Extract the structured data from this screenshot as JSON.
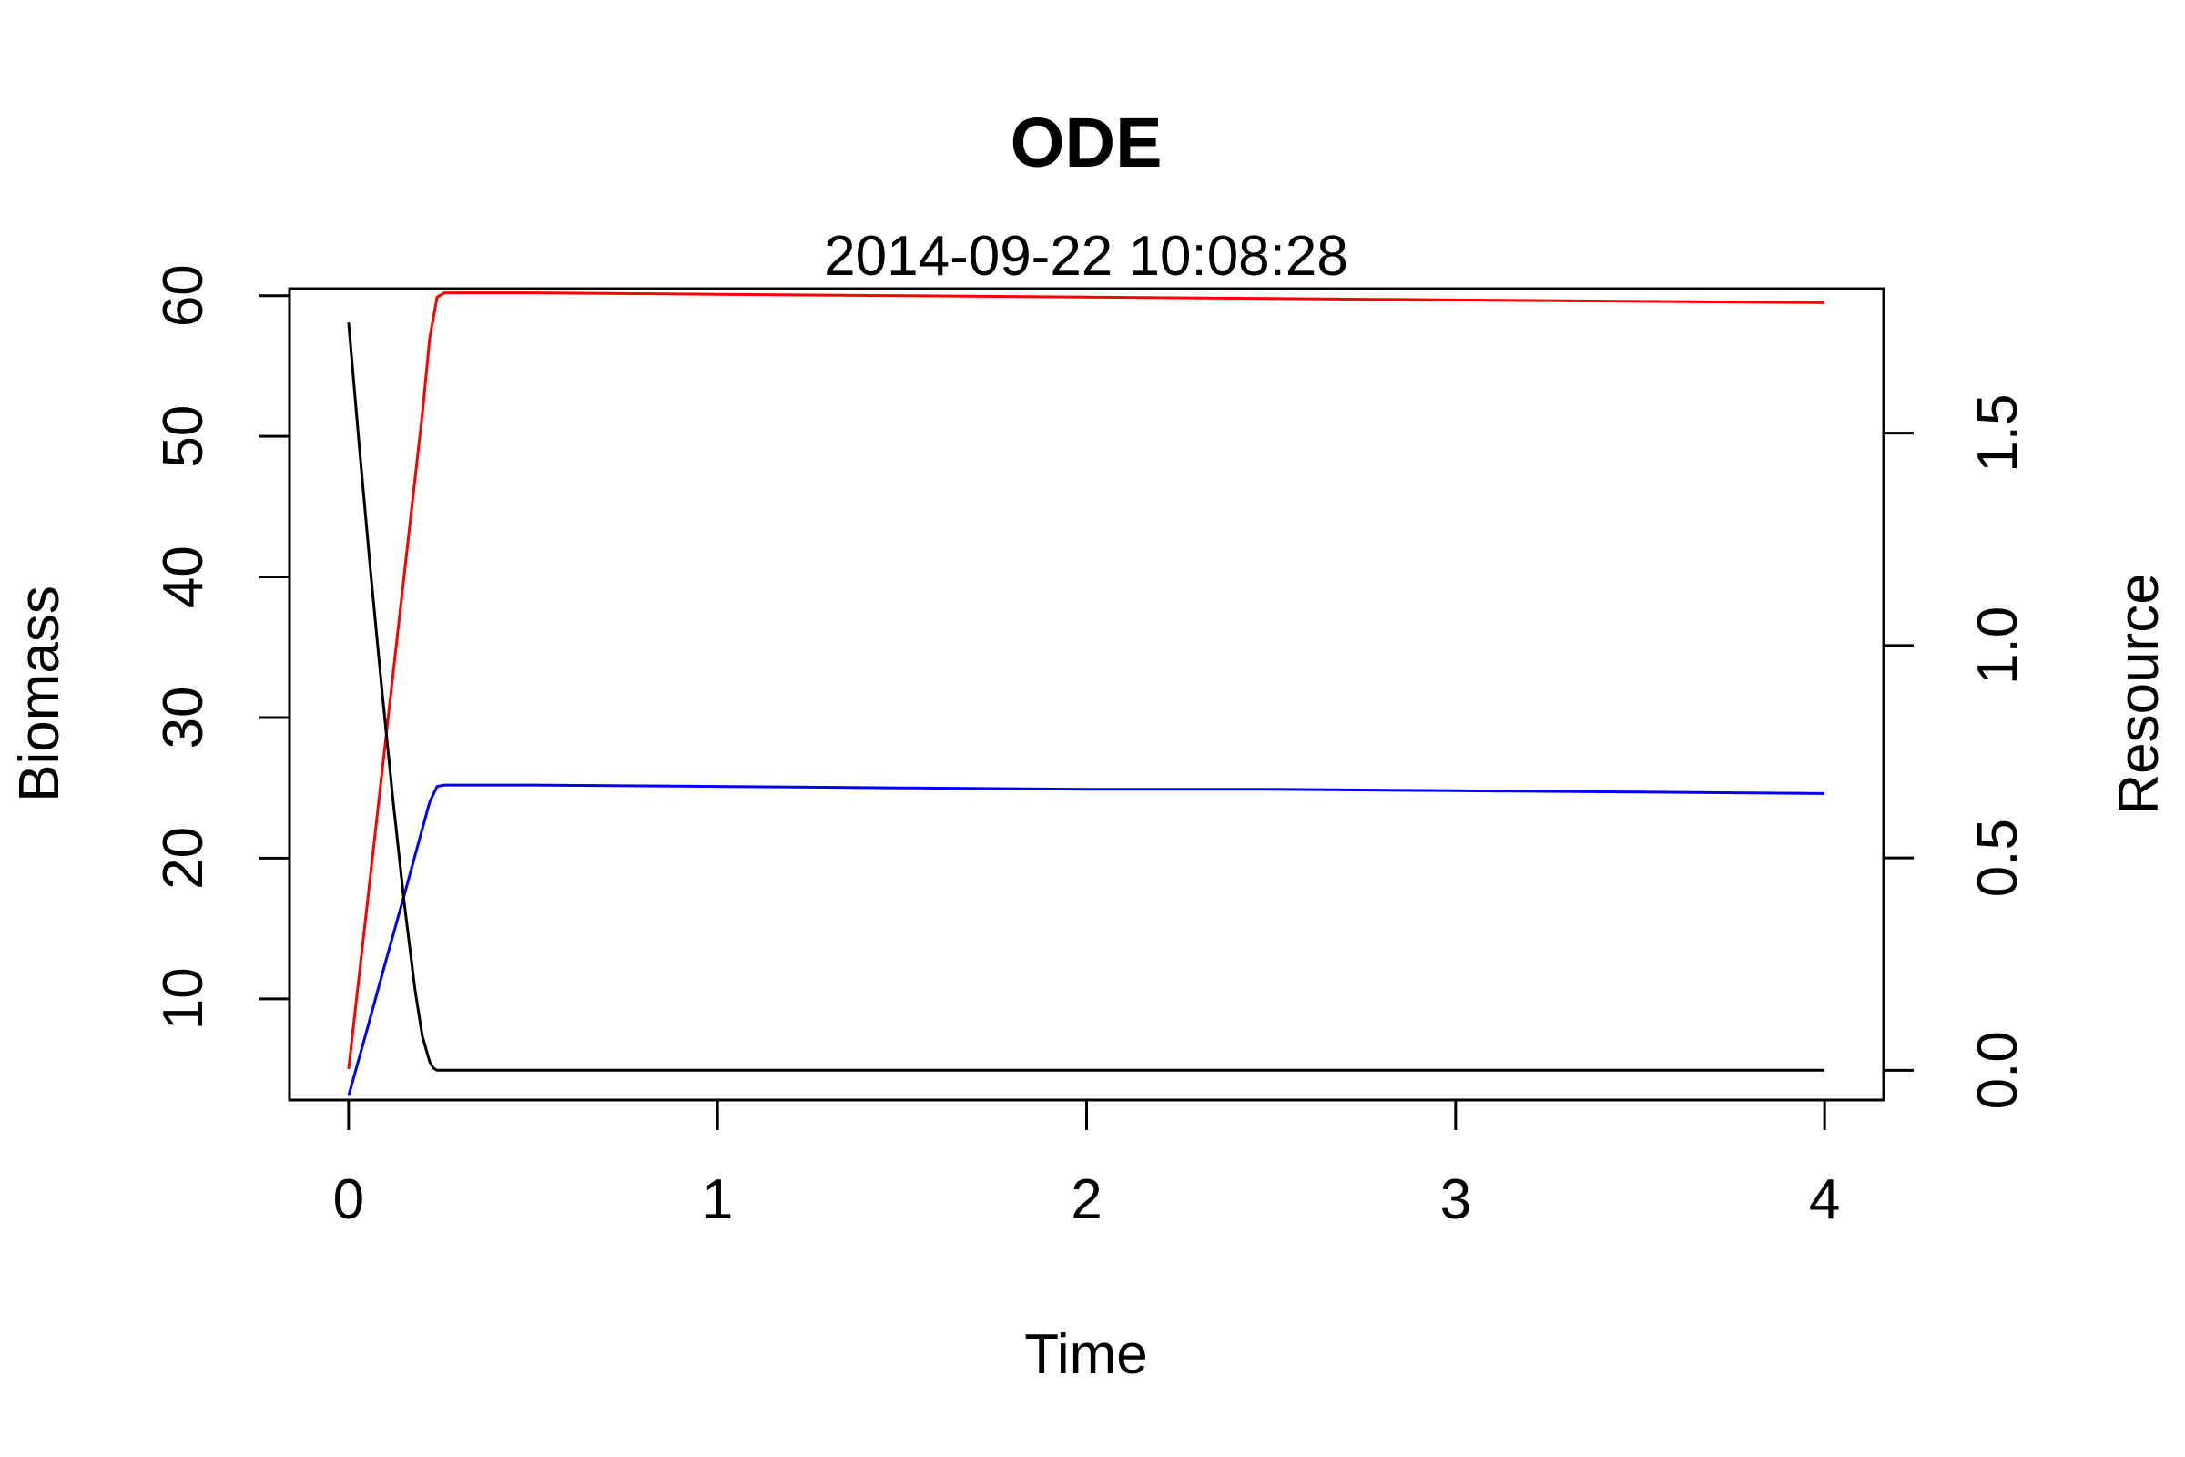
{
  "chart_data": {
    "type": "line",
    "title": "ODE",
    "subtitle": "2014-09-22 10:08:28",
    "xlabel": "Time",
    "ylabel": "Biomass",
    "y2label": "Resource",
    "xlim": [
      -0.16,
      4.16
    ],
    "ylim": [
      2.8,
      60.5
    ],
    "y2lim": [
      -0.07,
      1.84
    ],
    "x_ticks": [
      "0",
      "1",
      "2",
      "3",
      "4"
    ],
    "y_ticks": [
      "10",
      "20",
      "30",
      "40",
      "50",
      "60"
    ],
    "y2_ticks": [
      "0.0",
      "0.5",
      "1.0",
      "1.5"
    ],
    "grid": false,
    "series": [
      {
        "color": "#ff0000",
        "axis": "left",
        "x": [
          0,
          0.05,
          0.1,
          0.15,
          0.2,
          0.22,
          0.24,
          0.26,
          0.3,
          0.5,
          1,
          1.5,
          2,
          2.5,
          3,
          3.5,
          4
        ],
        "values": [
          5.0,
          16.6,
          28.3,
          40.0,
          51.6,
          57.0,
          59.9,
          60.2,
          60.2,
          60.2,
          60.1,
          60.0,
          59.9,
          59.8,
          59.7,
          59.6,
          59.5
        ]
      },
      {
        "color": "#0000ff",
        "axis": "left",
        "x": [
          0,
          0.05,
          0.1,
          0.15,
          0.2,
          0.22,
          0.24,
          0.26,
          0.3,
          0.5,
          1,
          1.5,
          2,
          2.5,
          3,
          3.5,
          4
        ],
        "values": [
          3.1,
          7.8,
          12.6,
          17.3,
          22.1,
          24.0,
          25.1,
          25.2,
          25.2,
          25.2,
          25.1,
          25.0,
          24.9,
          24.9,
          24.8,
          24.7,
          24.6
        ]
      },
      {
        "color": "#000000",
        "axis": "right",
        "x": [
          0,
          0.03,
          0.06,
          0.09,
          0.12,
          0.15,
          0.18,
          0.2,
          0.22,
          0.23,
          0.24,
          0.26,
          0.3,
          1,
          2,
          3,
          4
        ],
        "values": [
          1.76,
          1.46,
          1.17,
          0.9,
          0.64,
          0.4,
          0.19,
          0.08,
          0.02,
          0.005,
          0.0,
          0.0,
          0.0,
          0.0,
          0.0,
          0.0,
          0.0
        ]
      }
    ]
  }
}
